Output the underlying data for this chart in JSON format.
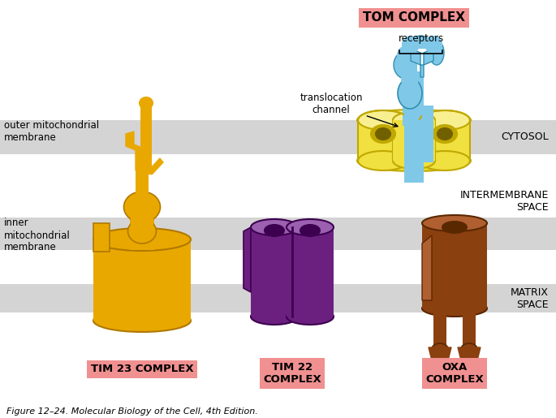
{
  "background": "#ffffff",
  "membrane_color": "#d4d4d4",
  "gold_color": "#E8A800",
  "gold_dark": "#B07800",
  "gold_light": "#F0C840",
  "purple_color": "#6B2080",
  "purple_dark": "#3D0050",
  "purple_light": "#9B60B0",
  "brown_color": "#8B4010",
  "brown_dark": "#5A2800",
  "brown_light": "#B06030",
  "blue_color": "#80C8E8",
  "blue_dark": "#3090B0",
  "yellow_color": "#F0E040",
  "yellow_dark": "#C0A800",
  "yellow_light": "#F8F090",
  "label_pink_bg": "#F09090",
  "fig_caption": "Figure 12–24. Molecular Biology of the Cell, 4th Edition.",
  "labels": {
    "TIM23": "TIM 23 COMPLEX",
    "TIM22": "TIM 22\nCOMPLEX",
    "OXA": "OXA\nCOMPLEX",
    "TOM": "TOM COMPLEX",
    "cytosol": "CYTOSOL",
    "intermem": "INTERMEMBRANE\nSPACE",
    "matrix": "MATRIX\nSPACE",
    "outer_mem": "outer mitochondrial\nmembrane",
    "inner_mem": "inner\nmitochondrial\nmembrane",
    "translocation": "translocation\nchannel",
    "receptors": "receptors"
  }
}
